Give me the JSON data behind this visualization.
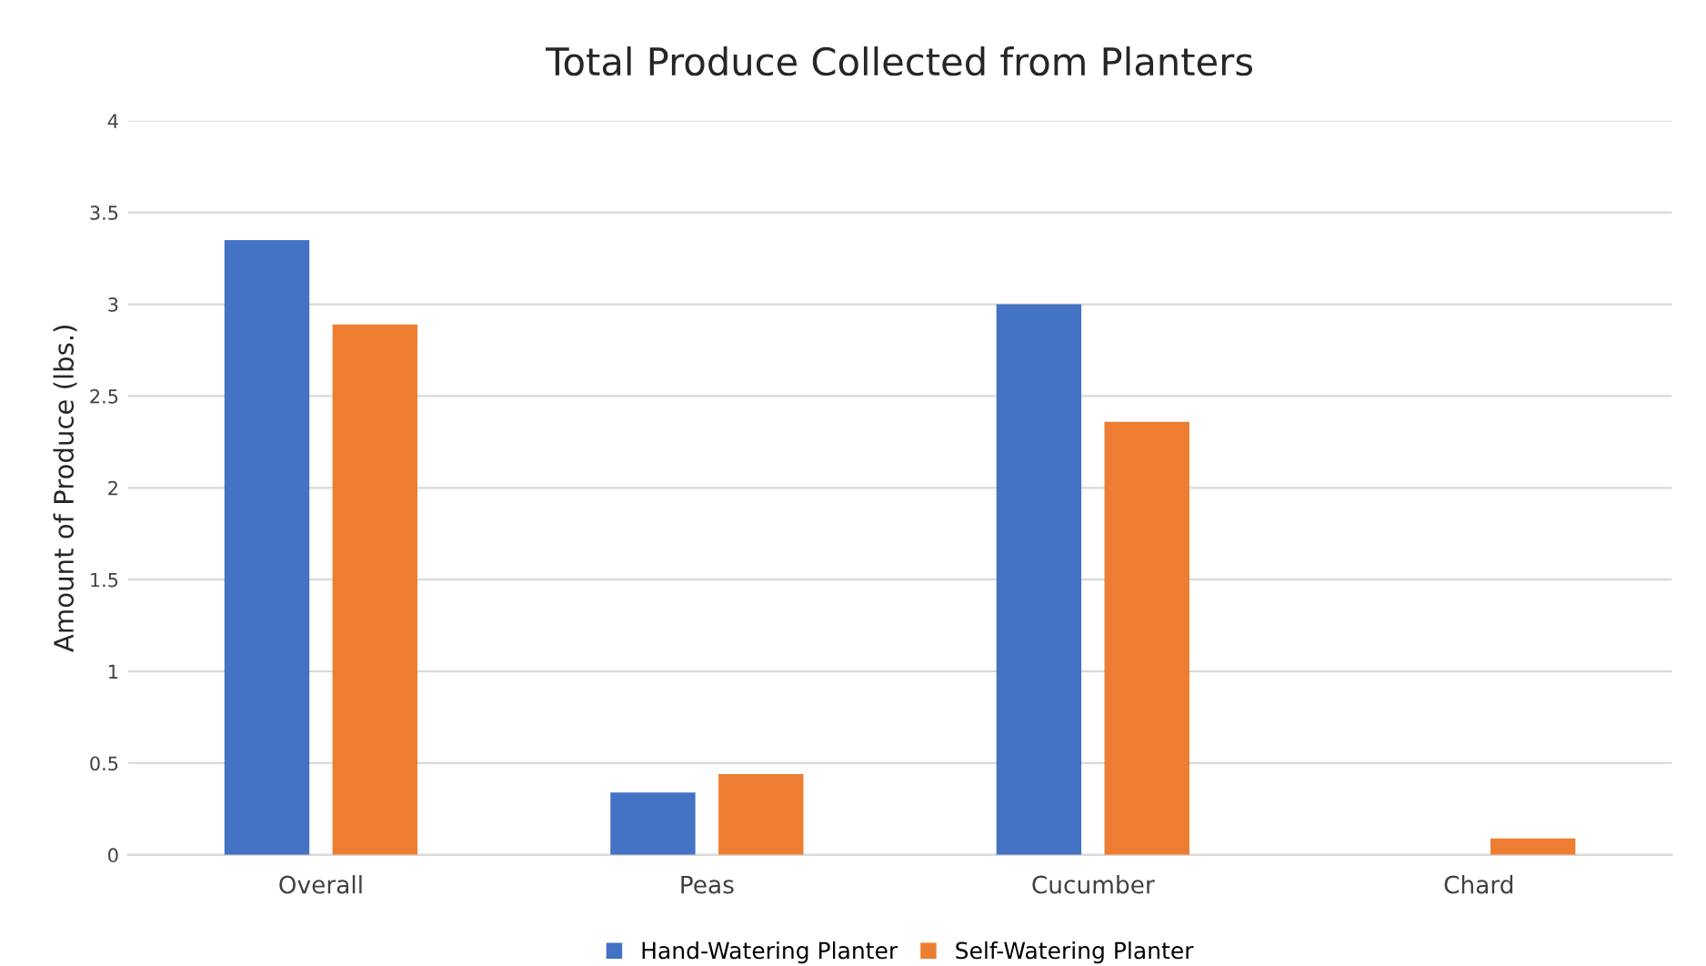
{
  "chart_data": {
    "type": "bar",
    "title": "Total Produce Collected from Planters",
    "ylabel": "Amount of Produce (lbs.)",
    "categories": [
      "Overall",
      "Peas",
      "Cucumber",
      "Chard"
    ],
    "series": [
      {
        "name": "Hand-Watering Planter",
        "color": "#4472c4",
        "values": [
          3.35,
          0.34,
          3.0,
          0
        ]
      },
      {
        "name": "Self-Watering Planter",
        "color": "#ed7d31",
        "values": [
          2.89,
          0.44,
          2.36,
          0.09
        ]
      }
    ],
    "ylim": [
      0,
      4
    ],
    "yticks": [
      0,
      0.5,
      1,
      1.5,
      2,
      2.5,
      3,
      3.5,
      4
    ],
    "grid": "y",
    "legend": "bottom"
  }
}
